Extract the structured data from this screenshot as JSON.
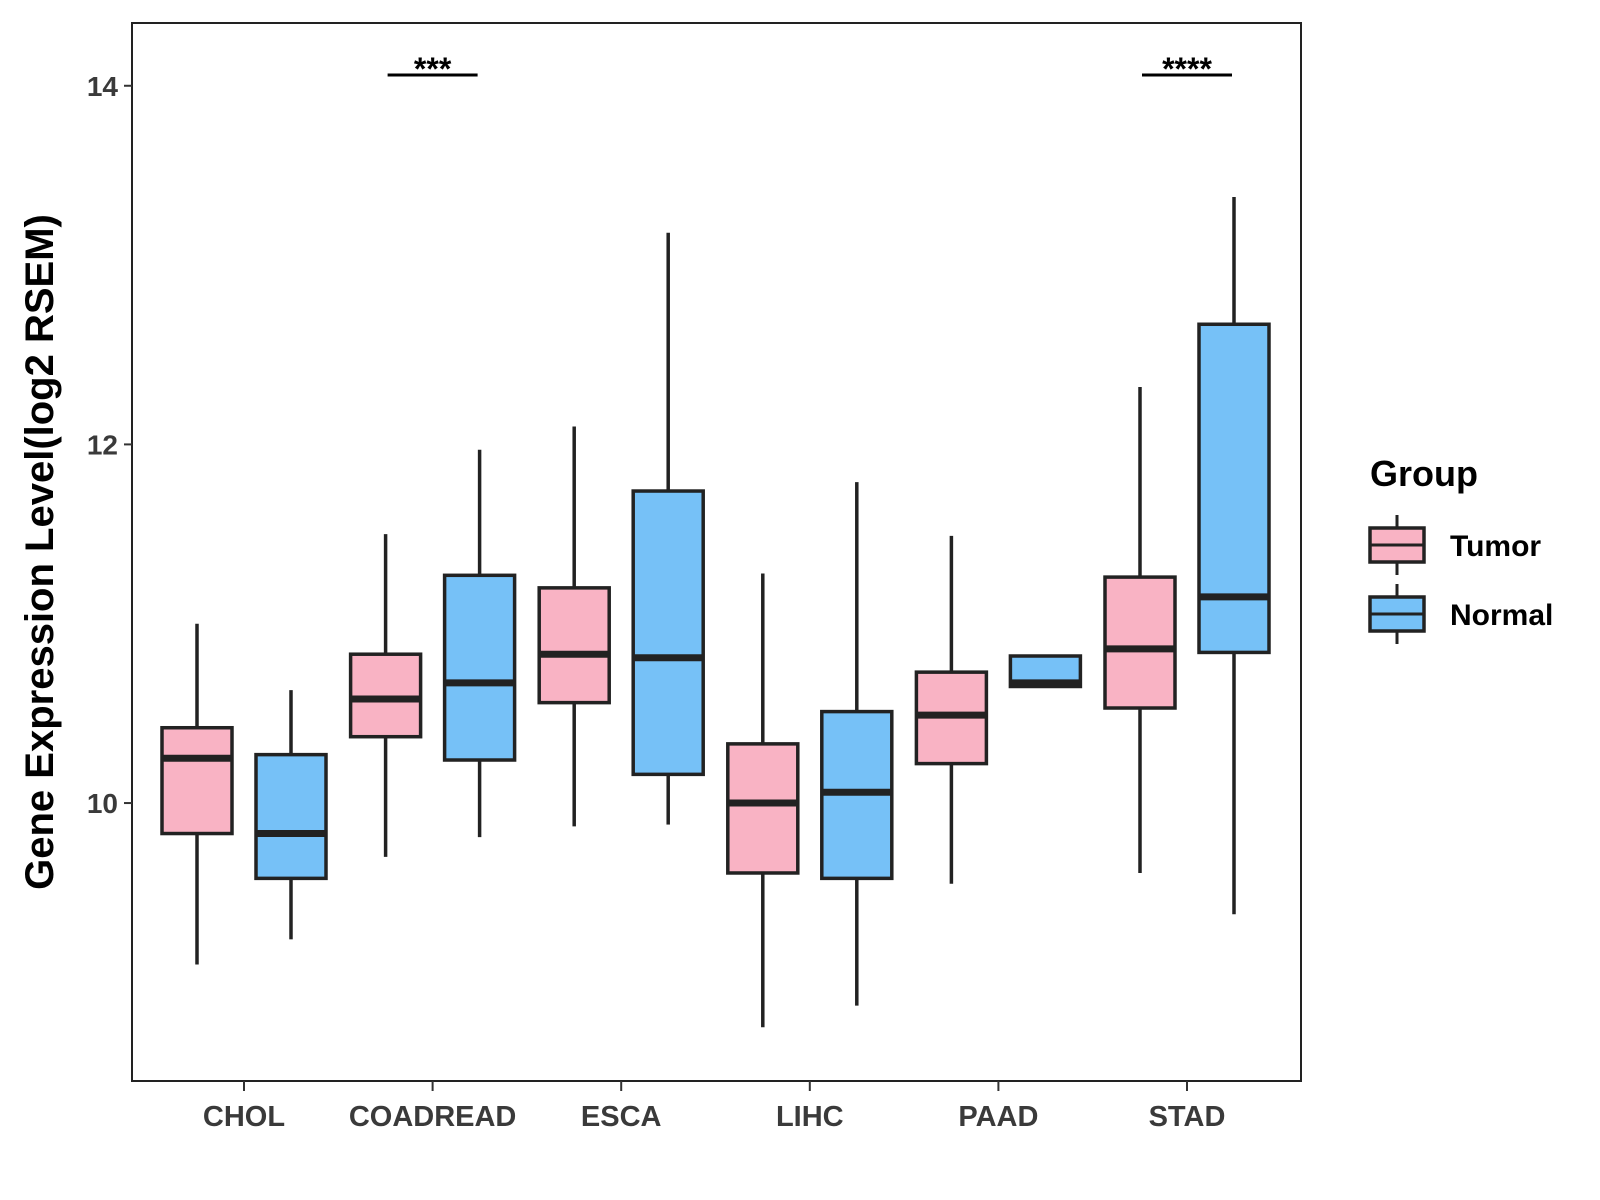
{
  "chart_data": {
    "type": "boxplot",
    "title": "",
    "xlabel": "",
    "ylabel": "Gene Expression Level(log2 RSEM)",
    "ylim": [
      8.45,
      14.35
    ],
    "yticks": [
      10,
      12,
      14
    ],
    "ytick_labels": [
      "10",
      "12",
      "14"
    ],
    "grid": false,
    "categories": [
      "CHOL",
      "COADREAD",
      "ESCA",
      "LIHC",
      "PAAD",
      "STAD"
    ],
    "series": [
      {
        "name": "Tumor",
        "color": "#F9B3C4",
        "boxes": [
          {
            "min": 9.1,
            "q1": 9.83,
            "median": 10.25,
            "q3": 10.42,
            "max": 11.0
          },
          {
            "min": 9.7,
            "q1": 10.37,
            "median": 10.58,
            "q3": 10.83,
            "max": 11.5
          },
          {
            "min": 9.87,
            "q1": 10.56,
            "median": 10.83,
            "q3": 11.2,
            "max": 12.1
          },
          {
            "min": 8.75,
            "q1": 9.61,
            "median": 10.0,
            "q3": 10.33,
            "max": 11.28
          },
          {
            "min": 9.55,
            "q1": 10.22,
            "median": 10.49,
            "q3": 10.73,
            "max": 11.49
          },
          {
            "min": 9.61,
            "q1": 10.53,
            "median": 10.86,
            "q3": 11.26,
            "max": 12.32
          }
        ]
      },
      {
        "name": "Normal",
        "color": "#76C1F7",
        "boxes": [
          {
            "min": 9.24,
            "q1": 9.58,
            "median": 9.83,
            "q3": 10.27,
            "max": 10.63
          },
          {
            "min": 9.81,
            "q1": 10.24,
            "median": 10.67,
            "q3": 11.27,
            "max": 11.97
          },
          {
            "min": 9.88,
            "q1": 10.16,
            "median": 10.81,
            "q3": 11.74,
            "max": 13.18
          },
          {
            "min": 8.87,
            "q1": 9.58,
            "median": 10.06,
            "q3": 10.51,
            "max": 11.79
          },
          {
            "min": 10.65,
            "q1": 10.65,
            "median": 10.67,
            "q3": 10.82,
            "max": 10.82
          },
          {
            "min": 9.38,
            "q1": 10.84,
            "median": 11.15,
            "q3": 12.67,
            "max": 13.38
          }
        ]
      }
    ],
    "significance": [
      {
        "category": "COADREAD",
        "label": "***"
      },
      {
        "category": "STAD",
        "label": "****"
      }
    ],
    "legend": {
      "title": "Group",
      "position": "right",
      "entries": [
        "Tumor",
        "Normal"
      ]
    },
    "outline_color": "#222222"
  }
}
